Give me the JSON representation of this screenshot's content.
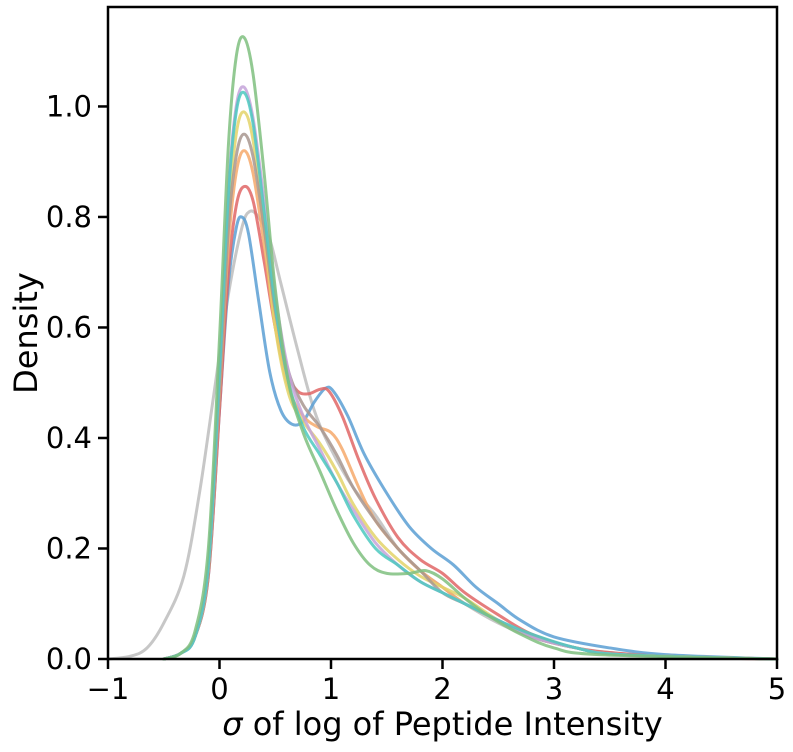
{
  "chart_data": {
    "type": "line",
    "title": "",
    "xlabel_symbol": "σ",
    "xlabel_rest": " of log of Peptide Intensity",
    "ylabel": "Density",
    "xlim": [
      -1,
      5
    ],
    "ylim": [
      0,
      1.18
    ],
    "xticks": [
      -1,
      0,
      1,
      2,
      3,
      4,
      5
    ],
    "xtick_labels": [
      "−1",
      "0",
      "1",
      "2",
      "3",
      "4",
      "5"
    ],
    "yticks": [
      0.0,
      0.2,
      0.4,
      0.6,
      0.8,
      1.0
    ],
    "ytick_labels": [
      "0.0",
      "0.2",
      "0.4",
      "0.6",
      "0.8",
      "1.0"
    ],
    "grid": false,
    "legend": "none",
    "series": [
      {
        "color": "#bdbdbd",
        "points": [
          [
            -1.0,
            0.0
          ],
          [
            -0.8,
            0.005
          ],
          [
            -0.65,
            0.02
          ],
          [
            -0.5,
            0.065
          ],
          [
            -0.32,
            0.15
          ],
          [
            -0.18,
            0.3
          ],
          [
            -0.05,
            0.48
          ],
          [
            0.08,
            0.66
          ],
          [
            0.2,
            0.78
          ],
          [
            0.27,
            0.81
          ],
          [
            0.35,
            0.8
          ],
          [
            0.45,
            0.76
          ],
          [
            0.55,
            0.68
          ],
          [
            0.7,
            0.56
          ],
          [
            0.85,
            0.45
          ],
          [
            1.0,
            0.38
          ],
          [
            1.2,
            0.31
          ],
          [
            1.4,
            0.26
          ],
          [
            1.6,
            0.2
          ],
          [
            1.8,
            0.16
          ],
          [
            2.0,
            0.13
          ],
          [
            2.2,
            0.1
          ],
          [
            2.5,
            0.065
          ],
          [
            2.8,
            0.04
          ],
          [
            3.2,
            0.02
          ],
          [
            3.6,
            0.01
          ],
          [
            4.2,
            0.004
          ],
          [
            5.0,
            0.0
          ]
        ]
      },
      {
        "color": "#5b9fd4",
        "points": [
          [
            -0.5,
            0.0
          ],
          [
            -0.35,
            0.01
          ],
          [
            -0.22,
            0.04
          ],
          [
            -0.1,
            0.15
          ],
          [
            0.0,
            0.45
          ],
          [
            0.08,
            0.68
          ],
          [
            0.15,
            0.78
          ],
          [
            0.2,
            0.8
          ],
          [
            0.26,
            0.77
          ],
          [
            0.35,
            0.65
          ],
          [
            0.45,
            0.52
          ],
          [
            0.55,
            0.45
          ],
          [
            0.65,
            0.425
          ],
          [
            0.75,
            0.43
          ],
          [
            0.85,
            0.465
          ],
          [
            0.95,
            0.49
          ],
          [
            1.02,
            0.485
          ],
          [
            1.15,
            0.44
          ],
          [
            1.3,
            0.37
          ],
          [
            1.5,
            0.3
          ],
          [
            1.7,
            0.24
          ],
          [
            1.9,
            0.2
          ],
          [
            2.1,
            0.17
          ],
          [
            2.3,
            0.13
          ],
          [
            2.5,
            0.1
          ],
          [
            2.7,
            0.07
          ],
          [
            3.0,
            0.04
          ],
          [
            3.5,
            0.02
          ],
          [
            4.0,
            0.008
          ],
          [
            5.0,
            0.0
          ]
        ]
      },
      {
        "color": "#e06666",
        "points": [
          [
            -0.5,
            0.0
          ],
          [
            -0.35,
            0.01
          ],
          [
            -0.22,
            0.04
          ],
          [
            -0.1,
            0.15
          ],
          [
            0.0,
            0.45
          ],
          [
            0.08,
            0.7
          ],
          [
            0.15,
            0.82
          ],
          [
            0.22,
            0.855
          ],
          [
            0.3,
            0.83
          ],
          [
            0.4,
            0.72
          ],
          [
            0.5,
            0.6
          ],
          [
            0.6,
            0.52
          ],
          [
            0.7,
            0.485
          ],
          [
            0.8,
            0.48
          ],
          [
            0.9,
            0.488
          ],
          [
            0.98,
            0.485
          ],
          [
            1.1,
            0.44
          ],
          [
            1.25,
            0.36
          ],
          [
            1.4,
            0.29
          ],
          [
            1.6,
            0.22
          ],
          [
            1.8,
            0.18
          ],
          [
            2.0,
            0.155
          ],
          [
            2.2,
            0.12
          ],
          [
            2.5,
            0.08
          ],
          [
            2.8,
            0.045
          ],
          [
            3.2,
            0.02
          ],
          [
            3.6,
            0.01
          ],
          [
            4.2,
            0.003
          ],
          [
            5.0,
            0.0
          ]
        ]
      },
      {
        "color": "#f6a96b",
        "points": [
          [
            -0.5,
            0.0
          ],
          [
            -0.35,
            0.01
          ],
          [
            -0.22,
            0.04
          ],
          [
            -0.1,
            0.16
          ],
          [
            0.0,
            0.48
          ],
          [
            0.08,
            0.75
          ],
          [
            0.15,
            0.88
          ],
          [
            0.22,
            0.92
          ],
          [
            0.3,
            0.88
          ],
          [
            0.4,
            0.75
          ],
          [
            0.5,
            0.6
          ],
          [
            0.62,
            0.49
          ],
          [
            0.75,
            0.44
          ],
          [
            0.88,
            0.42
          ],
          [
            1.0,
            0.41
          ],
          [
            1.1,
            0.38
          ],
          [
            1.25,
            0.31
          ],
          [
            1.4,
            0.25
          ],
          [
            1.6,
            0.2
          ],
          [
            1.8,
            0.16
          ],
          [
            2.0,
            0.13
          ],
          [
            2.2,
            0.1
          ],
          [
            2.5,
            0.07
          ],
          [
            2.8,
            0.04
          ],
          [
            3.2,
            0.02
          ],
          [
            3.6,
            0.008
          ],
          [
            5.0,
            0.0
          ]
        ]
      },
      {
        "color": "#e3d36a",
        "points": [
          [
            -0.5,
            0.0
          ],
          [
            -0.35,
            0.01
          ],
          [
            -0.22,
            0.04
          ],
          [
            -0.1,
            0.16
          ],
          [
            0.0,
            0.5
          ],
          [
            0.08,
            0.8
          ],
          [
            0.15,
            0.95
          ],
          [
            0.22,
            0.99
          ],
          [
            0.3,
            0.94
          ],
          [
            0.4,
            0.78
          ],
          [
            0.5,
            0.6
          ],
          [
            0.62,
            0.48
          ],
          [
            0.75,
            0.43
          ],
          [
            0.9,
            0.39
          ],
          [
            1.05,
            0.34
          ],
          [
            1.2,
            0.28
          ],
          [
            1.4,
            0.22
          ],
          [
            1.6,
            0.18
          ],
          [
            1.8,
            0.15
          ],
          [
            2.0,
            0.13
          ],
          [
            2.2,
            0.11
          ],
          [
            2.5,
            0.07
          ],
          [
            2.8,
            0.04
          ],
          [
            3.2,
            0.02
          ],
          [
            3.6,
            0.008
          ],
          [
            5.0,
            0.0
          ]
        ]
      },
      {
        "color": "#a8978f",
        "points": [
          [
            -0.5,
            0.0
          ],
          [
            -0.35,
            0.01
          ],
          [
            -0.22,
            0.04
          ],
          [
            -0.1,
            0.16
          ],
          [
            0.0,
            0.49
          ],
          [
            0.08,
            0.78
          ],
          [
            0.15,
            0.91
          ],
          [
            0.22,
            0.95
          ],
          [
            0.3,
            0.91
          ],
          [
            0.4,
            0.78
          ],
          [
            0.5,
            0.63
          ],
          [
            0.62,
            0.52
          ],
          [
            0.75,
            0.46
          ],
          [
            0.9,
            0.42
          ],
          [
            1.05,
            0.37
          ],
          [
            1.2,
            0.31
          ],
          [
            1.4,
            0.25
          ],
          [
            1.6,
            0.2
          ],
          [
            1.8,
            0.16
          ],
          [
            2.0,
            0.12
          ],
          [
            2.2,
            0.1
          ],
          [
            2.5,
            0.07
          ],
          [
            2.8,
            0.04
          ],
          [
            3.2,
            0.02
          ],
          [
            3.6,
            0.008
          ],
          [
            5.0,
            0.0
          ]
        ]
      },
      {
        "color": "#c4a3d9",
        "points": [
          [
            -0.5,
            0.0
          ],
          [
            -0.35,
            0.01
          ],
          [
            -0.22,
            0.04
          ],
          [
            -0.1,
            0.17
          ],
          [
            0.0,
            0.52
          ],
          [
            0.08,
            0.85
          ],
          [
            0.15,
            1.0
          ],
          [
            0.22,
            1.035
          ],
          [
            0.3,
            0.98
          ],
          [
            0.4,
            0.83
          ],
          [
            0.5,
            0.66
          ],
          [
            0.62,
            0.52
          ],
          [
            0.75,
            0.44
          ],
          [
            0.9,
            0.38
          ],
          [
            1.05,
            0.32
          ],
          [
            1.2,
            0.27
          ],
          [
            1.4,
            0.21
          ],
          [
            1.6,
            0.17
          ],
          [
            1.8,
            0.14
          ],
          [
            2.0,
            0.12
          ],
          [
            2.2,
            0.1
          ],
          [
            2.5,
            0.07
          ],
          [
            2.8,
            0.04
          ],
          [
            3.2,
            0.02
          ],
          [
            3.6,
            0.008
          ],
          [
            5.0,
            0.0
          ]
        ]
      },
      {
        "color": "#4cc9c0",
        "points": [
          [
            -0.5,
            0.0
          ],
          [
            -0.35,
            0.01
          ],
          [
            -0.22,
            0.04
          ],
          [
            -0.1,
            0.17
          ],
          [
            0.0,
            0.52
          ],
          [
            0.08,
            0.84
          ],
          [
            0.15,
            0.99
          ],
          [
            0.22,
            1.025
          ],
          [
            0.3,
            0.97
          ],
          [
            0.4,
            0.81
          ],
          [
            0.5,
            0.64
          ],
          [
            0.62,
            0.5
          ],
          [
            0.75,
            0.42
          ],
          [
            0.9,
            0.37
          ],
          [
            1.05,
            0.32
          ],
          [
            1.2,
            0.26
          ],
          [
            1.4,
            0.2
          ],
          [
            1.6,
            0.17
          ],
          [
            1.8,
            0.14
          ],
          [
            2.0,
            0.12
          ],
          [
            2.2,
            0.1
          ],
          [
            2.5,
            0.07
          ],
          [
            2.8,
            0.045
          ],
          [
            3.2,
            0.02
          ],
          [
            3.6,
            0.008
          ],
          [
            5.0,
            0.0
          ]
        ]
      },
      {
        "color": "#7fbf7f",
        "points": [
          [
            -0.5,
            0.0
          ],
          [
            -0.35,
            0.01
          ],
          [
            -0.22,
            0.05
          ],
          [
            -0.1,
            0.2
          ],
          [
            0.0,
            0.58
          ],
          [
            0.08,
            0.93
          ],
          [
            0.15,
            1.09
          ],
          [
            0.22,
            1.125
          ],
          [
            0.3,
            1.06
          ],
          [
            0.4,
            0.88
          ],
          [
            0.5,
            0.67
          ],
          [
            0.62,
            0.5
          ],
          [
            0.75,
            0.41
          ],
          [
            0.9,
            0.34
          ],
          [
            1.05,
            0.27
          ],
          [
            1.2,
            0.21
          ],
          [
            1.35,
            0.17
          ],
          [
            1.5,
            0.155
          ],
          [
            1.7,
            0.155
          ],
          [
            1.85,
            0.16
          ],
          [
            2.0,
            0.145
          ],
          [
            2.2,
            0.11
          ],
          [
            2.4,
            0.08
          ],
          [
            2.7,
            0.045
          ],
          [
            3.0,
            0.02
          ],
          [
            3.4,
            0.008
          ],
          [
            5.0,
            0.0
          ]
        ]
      }
    ]
  }
}
